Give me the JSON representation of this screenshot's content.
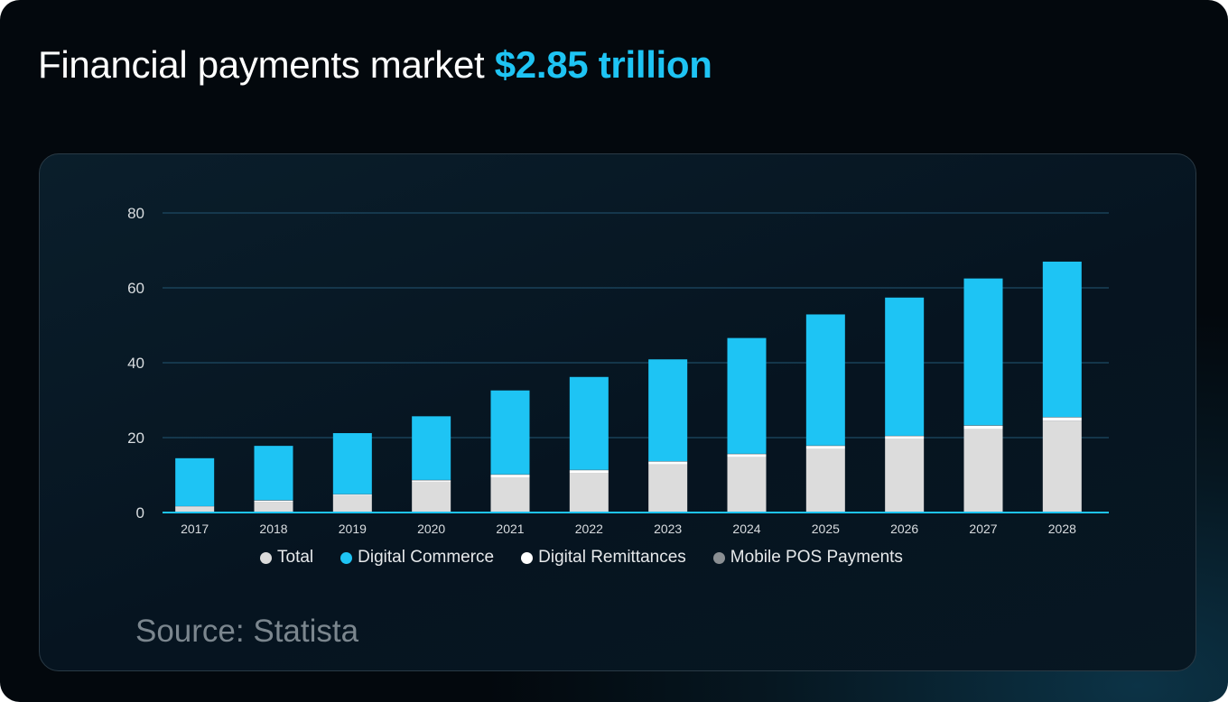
{
  "title": {
    "text": "Financial payments market ",
    "highlight": "$2.85 trillion"
  },
  "source": "Source: Statista",
  "colors": {
    "accent": "#1ec4f4",
    "total": "#dcdcdc",
    "digital_remittances": "#ffffff",
    "mobile_pos": "#8a8f93",
    "gridline": "#1d4a63",
    "baseline": "#1ec4f4"
  },
  "chart_data": {
    "type": "bar",
    "stacked": true,
    "categories": [
      "2017",
      "2018",
      "2019",
      "2020",
      "2021",
      "2022",
      "2023",
      "2024",
      "2025",
      "2026",
      "2027",
      "2028"
    ],
    "series": [
      {
        "name": "Total",
        "values": [
          1.3,
          2.8,
          4.4,
          8.2,
          9.4,
          10.6,
          12.9,
          14.8,
          17.0,
          19.6,
          22.3,
          24.5
        ],
        "color": "#dcdcdc"
      },
      {
        "name": "Digital Remittances",
        "values": [
          0.3,
          0.4,
          0.4,
          0.4,
          0.7,
          0.7,
          0.7,
          0.8,
          0.8,
          0.8,
          0.9,
          0.9
        ],
        "color": "#ffffff"
      },
      {
        "name": "Mobile POS Payments",
        "values": [
          0.1,
          0.1,
          0.1,
          0.1,
          0.1,
          0.1,
          0.1,
          0.1,
          0.1,
          0.1,
          0.1,
          0.1
        ],
        "color": "#8a8f93"
      },
      {
        "name": "Digital Commerce",
        "values": [
          12.8,
          14.5,
          16.3,
          17.0,
          22.4,
          24.8,
          27.2,
          30.9,
          35.0,
          36.9,
          39.2,
          41.5
        ],
        "color": "#1ec4f4"
      }
    ],
    "legend_order": [
      "Total",
      "Digital Commerce",
      "Digital Remittances",
      "Mobile POS Payments"
    ],
    "yticks": [
      0,
      20,
      40,
      60,
      80
    ],
    "ylim": [
      0,
      80
    ],
    "grid": true,
    "legend_position": "bottom"
  }
}
